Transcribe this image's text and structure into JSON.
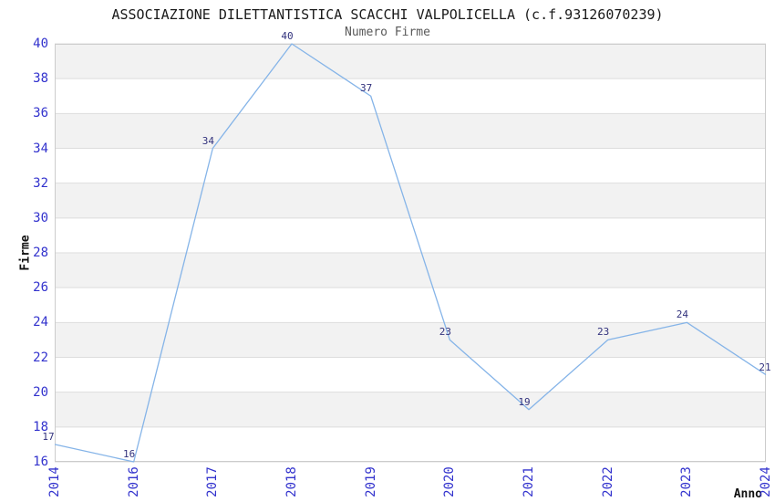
{
  "title": "ASSOCIAZIONE DILETTANTISTICA SCACCHI VALPOLICELLA (c.f.93126070239)",
  "subtitle": "Numero Firme",
  "chart_data": {
    "type": "line",
    "title": "ASSOCIAZIONE DILETTANTISTICA SCACCHI VALPOLICELLA (c.f.93126070239)",
    "subtitle": "Numero Firme",
    "xlabel": "Anno",
    "ylabel": "Firme",
    "categories": [
      "2014",
      "2016",
      "2017",
      "2018",
      "2019",
      "2020",
      "2021",
      "2022",
      "2023",
      "2024"
    ],
    "values": [
      17,
      16,
      34,
      40,
      37,
      23,
      19,
      23,
      24,
      21
    ],
    "ylim": [
      16,
      40
    ],
    "ytick_step": 2,
    "grid": "horizontal-bands-alternating",
    "legend": "none",
    "colors": {
      "line": "#85b4e8",
      "band": "#f2f2f2",
      "gridline": "#dddddd",
      "plot_border": "#cccccc",
      "tick_label": "#3232cd",
      "data_label": "#32327d",
      "title": "#1a1a1a",
      "subtitle": "#595959",
      "axis_title": "#111111",
      "background": "#ffffff"
    }
  }
}
